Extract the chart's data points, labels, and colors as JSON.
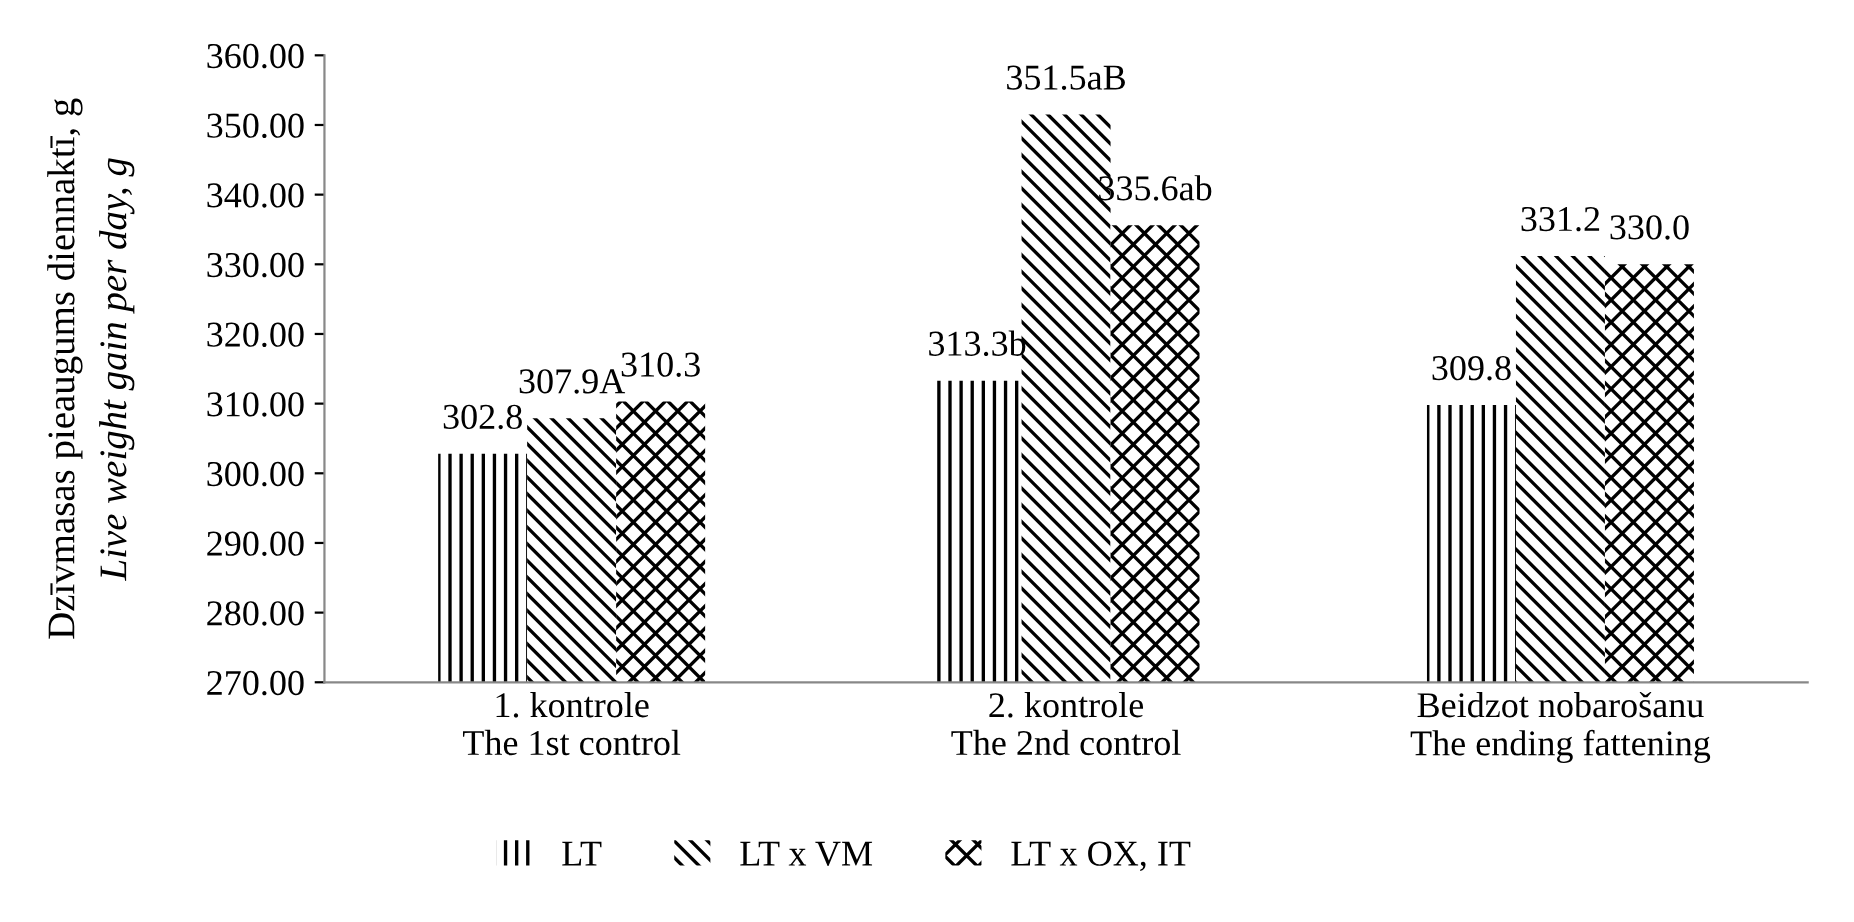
{
  "chart_data": {
    "type": "bar",
    "ylabel": "Dzīvmasas pieaugums diennaktī, g\nLive weight gain per day, g",
    "categories": [
      "1. kontrole\nThe 1st control",
      "2. kontrole\nThe 2nd control",
      "Beidzot nobarošanu\nThe ending fattening"
    ],
    "series": [
      {
        "name": "LT",
        "color": "#000000",
        "values": [
          302.8,
          313.3,
          309.8
        ],
        "value_labels": [
          "302.8",
          "313.3b",
          "309.8"
        ]
      },
      {
        "name": "LT x VM",
        "color": "#000000",
        "values": [
          307.9,
          351.5,
          331.2
        ],
        "value_labels": [
          "307.9A",
          "351.5aB",
          "331.2"
        ]
      },
      {
        "name": "LT x OX, IT",
        "color": "#000000",
        "values": [
          310.3,
          335.6,
          330.0
        ],
        "value_labels": [
          "310.3",
          "335.6ab",
          "330.0"
        ]
      }
    ],
    "ylim": [
      270,
      360
    ],
    "yticks": [
      {
        "value": 270,
        "label": "270.00"
      },
      {
        "value": 280,
        "label": "280.00"
      },
      {
        "value": 290,
        "label": "290.00"
      },
      {
        "value": 300,
        "label": "300.00"
      },
      {
        "value": 310,
        "label": "310.00"
      },
      {
        "value": 320,
        "label": "320.00"
      },
      {
        "value": 330,
        "label": "330.00"
      },
      {
        "value": 340,
        "label": "340.00"
      },
      {
        "value": 350,
        "label": "350.00"
      },
      {
        "value": 360,
        "label": "360.00"
      }
    ],
    "grid": false,
    "legend": "bottom"
  }
}
